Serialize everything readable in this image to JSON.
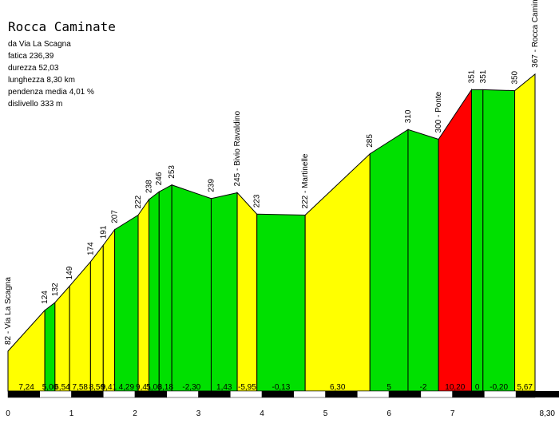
{
  "header": {
    "title": "Rocca Caminate",
    "details": [
      "da Via La Scagna",
      "fatica 236,39",
      "durezza 52,03",
      "lunghezza 8,30 km",
      "pendenza media 4,01 %",
      "dislivello 333 m"
    ]
  },
  "colors": {
    "yellow": "#ffff00",
    "green": "#00e000",
    "red": "#ff0000",
    "outline": "#000000"
  },
  "chart_data": {
    "type": "area",
    "title": "Rocca Caminate",
    "xlabel": "",
    "ylabel": "",
    "xlim": [
      0,
      8.3
    ],
    "x_ticks": [
      "0",
      "1",
      "2",
      "3",
      "4",
      "5",
      "6",
      "7",
      "8,30"
    ],
    "points": [
      {
        "x": 0.0,
        "alt": 82,
        "label": "82 - Via La Scagna"
      },
      {
        "x": 0.58,
        "alt": 124,
        "label": "124"
      },
      {
        "x": 0.74,
        "alt": 132,
        "label": "132"
      },
      {
        "x": 0.97,
        "alt": 149,
        "label": "149"
      },
      {
        "x": 1.3,
        "alt": 174,
        "label": "174"
      },
      {
        "x": 1.5,
        "alt": 191,
        "label": "191"
      },
      {
        "x": 1.68,
        "alt": 207,
        "label": "207"
      },
      {
        "x": 2.05,
        "alt": 222,
        "label": "222"
      },
      {
        "x": 2.22,
        "alt": 238,
        "label": "238"
      },
      {
        "x": 2.38,
        "alt": 246,
        "label": "246"
      },
      {
        "x": 2.58,
        "alt": 253,
        "label": "253"
      },
      {
        "x": 3.2,
        "alt": 239,
        "label": "239"
      },
      {
        "x": 3.61,
        "alt": 245,
        "label": "245 - Bivio Ravaldino"
      },
      {
        "x": 3.92,
        "alt": 223,
        "label": "223"
      },
      {
        "x": 4.68,
        "alt": 222,
        "label": "222 - Martinelle"
      },
      {
        "x": 5.7,
        "alt": 285,
        "label": "285"
      },
      {
        "x": 6.3,
        "alt": 310,
        "label": "310"
      },
      {
        "x": 6.78,
        "alt": 300,
        "label": "300 - Ponte"
      },
      {
        "x": 7.3,
        "alt": 351,
        "label": "351"
      },
      {
        "x": 7.48,
        "alt": 351,
        "label": "351"
      },
      {
        "x": 7.98,
        "alt": 350,
        "label": "350"
      },
      {
        "x": 8.3,
        "alt": 367,
        "label": "367 - Rocca Caminate"
      }
    ],
    "segments": [
      {
        "grade": "7,24",
        "color": "yellow"
      },
      {
        "grade": "5,00",
        "color": "green"
      },
      {
        "grade": "6,54",
        "color": "yellow"
      },
      {
        "grade": "7,58",
        "color": "yellow"
      },
      {
        "grade": "8,50",
        "color": "yellow"
      },
      {
        "grade": "9,41",
        "color": "yellow"
      },
      {
        "grade": "4,29",
        "color": "green"
      },
      {
        "grade": "9,41",
        "color": "yellow"
      },
      {
        "grade": "5,00",
        "color": "green"
      },
      {
        "grade": "3,18",
        "color": "green"
      },
      {
        "grade": "-2,30",
        "color": "green"
      },
      {
        "grade": "1,43",
        "color": "green"
      },
      {
        "grade": "-5,95",
        "color": "yellow"
      },
      {
        "grade": "-0,13",
        "color": "green"
      },
      {
        "grade": "6,30",
        "color": "yellow"
      },
      {
        "grade": "5",
        "color": "green"
      },
      {
        "grade": "-2",
        "color": "green"
      },
      {
        "grade": "10,20",
        "color": "red"
      },
      {
        "grade": "0",
        "color": "green"
      },
      {
        "grade": "-0,20",
        "color": "green"
      },
      {
        "grade": "5,67",
        "color": "yellow"
      }
    ]
  }
}
